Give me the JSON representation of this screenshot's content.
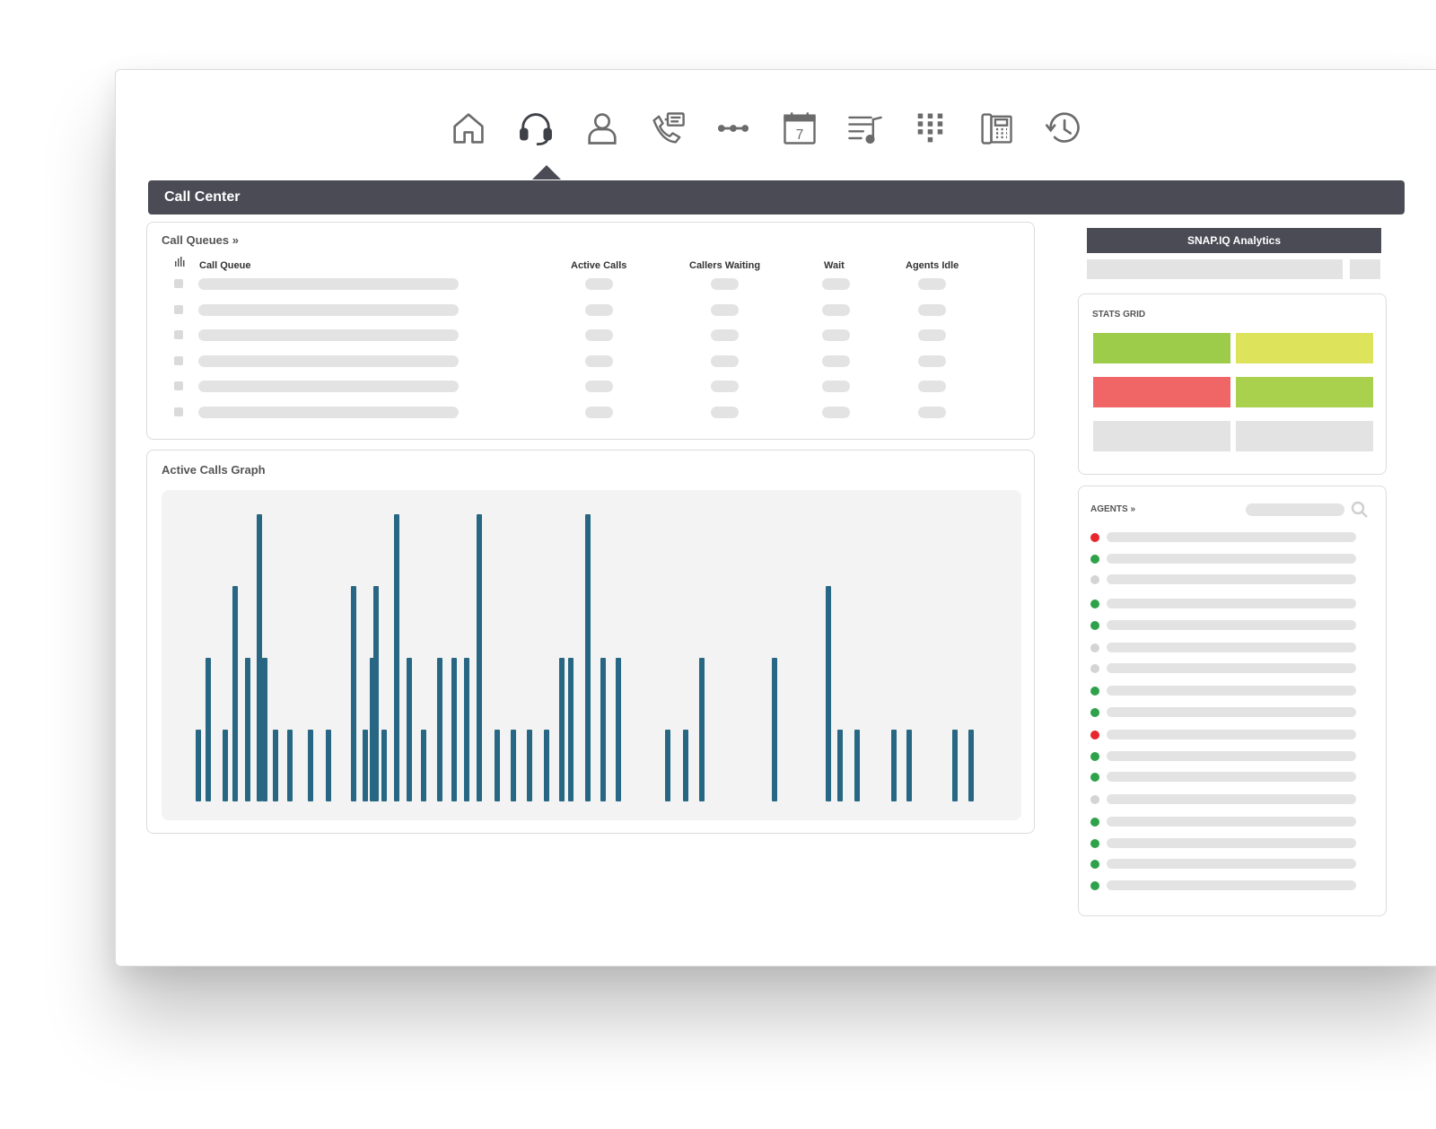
{
  "nav": {
    "items": [
      {
        "name": "home-icon"
      },
      {
        "name": "headset-icon",
        "active": true
      },
      {
        "name": "user-icon"
      },
      {
        "name": "phone-message-icon"
      },
      {
        "name": "connection-icon"
      },
      {
        "name": "calendar-icon",
        "text": "7"
      },
      {
        "name": "music-queue-icon"
      },
      {
        "name": "dialpad-icon"
      },
      {
        "name": "desk-phone-icon"
      },
      {
        "name": "history-icon"
      }
    ]
  },
  "header": {
    "title": "Call Center"
  },
  "call_queues": {
    "title": "Call Queues »",
    "columns": [
      "Call Queue",
      "Active Calls",
      "Callers Waiting",
      "Wait",
      "Agents Idle"
    ],
    "row_count": 6
  },
  "active_calls_graph": {
    "title": "Active Calls Graph"
  },
  "chart_data": {
    "type": "bar",
    "title": "Active Calls Graph",
    "values": [
      1,
      2,
      1,
      3,
      2,
      4,
      2,
      1,
      1,
      1,
      1,
      3,
      1,
      2,
      3,
      1,
      4,
      2,
      1,
      2,
      2,
      2,
      4,
      1,
      1,
      1,
      1,
      2,
      2,
      4,
      2,
      2,
      1,
      1,
      2,
      2,
      3,
      1,
      1,
      1,
      1,
      1,
      1
    ],
    "color": "#276783"
  },
  "analytics": {
    "label": "SNAP.IQ Analytics"
  },
  "stats_grid": {
    "title": "STATS GRID",
    "cells": [
      {
        "color": "#9dcb4a"
      },
      {
        "color": "#dde35b"
      },
      {
        "color": "#f06565"
      },
      {
        "color": "#a9d14e"
      },
      {
        "color": "#e3e3e3"
      },
      {
        "color": "#e3e3e3"
      }
    ]
  },
  "agents": {
    "title": "AGENTS »",
    "statuses": [
      "red",
      "green",
      "gray",
      "green",
      "green",
      "gray",
      "gray",
      "green",
      "green",
      "red",
      "green",
      "green",
      "gray",
      "green",
      "green",
      "green",
      "green"
    ],
    "colors": {
      "red": "#e8262d",
      "green": "#2ea24a",
      "gray": "#d4d4d4"
    }
  }
}
